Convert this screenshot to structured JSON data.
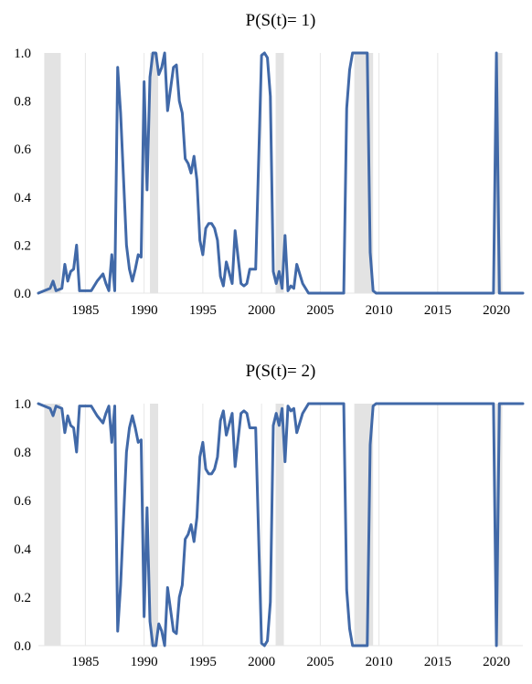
{
  "chart_data": [
    {
      "type": "line",
      "title": "P(S(t)= 1)",
      "xlabel": "",
      "ylabel": "",
      "xlim": [
        1981.0,
        2022.25
      ],
      "ylim": [
        0.0,
        1.0
      ],
      "x_ticks": [
        1985,
        1990,
        1995,
        2000,
        2005,
        2010,
        2015,
        2020
      ],
      "y_ticks": [
        0.0,
        0.2,
        0.4,
        0.6,
        0.8,
        1.0
      ],
      "y_tick_labels": [
        "0.0",
        "0.2",
        "0.4",
        "0.6",
        "0.8",
        "1.0"
      ],
      "grid": "vertical",
      "line_color": "#4169a8",
      "shading_color": "#e3e3e3",
      "shaded_periods": [
        [
          1981.5,
          1982.9
        ],
        [
          1990.5,
          1991.2
        ],
        [
          2001.2,
          2001.9
        ],
        [
          2007.9,
          2009.5
        ],
        [
          2020.0,
          2020.5
        ]
      ],
      "series": [
        {
          "x": [
            1981.0,
            1981.5,
            1982.0,
            1982.25,
            1982.5,
            1983.0,
            1983.25,
            1983.5,
            1983.75,
            1984.0,
            1984.25,
            1984.5,
            1984.75,
            1985.5,
            1986.0,
            1986.5,
            1986.75,
            1987.0,
            1987.25,
            1987.5,
            1987.75,
            1988.0,
            1988.5,
            1988.75,
            1989.0,
            1989.25,
            1989.5,
            1989.75,
            1990.0,
            1990.25,
            1990.5,
            1990.75,
            1991.0,
            1991.25,
            1991.5,
            1991.75,
            1992.0,
            1992.5,
            1992.75,
            1993.0,
            1993.25,
            1993.5,
            1993.75,
            1994.0,
            1994.25,
            1994.5,
            1994.75,
            1995.0,
            1995.25,
            1995.5,
            1995.75,
            1996.0,
            1996.25,
            1996.5,
            1996.75,
            1997.0,
            1997.5,
            1997.75,
            1998.0,
            1998.25,
            1998.5,
            1998.75,
            1999.0,
            1999.5,
            2000.0,
            2000.25,
            2000.5,
            2000.75,
            2001.0,
            2001.25,
            2001.5,
            2001.75,
            2002.0,
            2002.25,
            2002.5,
            2002.75,
            2003.0,
            2003.5,
            2004.0,
            2007.0,
            2007.25,
            2007.5,
            2007.75,
            2008.0,
            2008.5,
            2009.0,
            2009.25,
            2009.5,
            2009.75,
            2010.0,
            2011.0,
            2013.0,
            2016.0,
            2016.5,
            2017.0,
            2018.0,
            2019.0,
            2019.5,
            2019.75,
            2020.0,
            2020.25,
            2020.5,
            2020.75,
            2021.0,
            2022.25
          ],
          "y": [
            0.0,
            0.01,
            0.02,
            0.05,
            0.01,
            0.02,
            0.12,
            0.05,
            0.09,
            0.1,
            0.2,
            0.01,
            0.01,
            0.01,
            0.05,
            0.08,
            0.04,
            0.01,
            0.16,
            0.01,
            0.94,
            0.75,
            0.2,
            0.1,
            0.05,
            0.1,
            0.16,
            0.15,
            0.88,
            0.43,
            0.9,
            1.0,
            1.0,
            0.91,
            0.94,
            1.0,
            0.76,
            0.94,
            0.95,
            0.8,
            0.75,
            0.56,
            0.54,
            0.5,
            0.57,
            0.47,
            0.22,
            0.16,
            0.27,
            0.29,
            0.29,
            0.27,
            0.22,
            0.07,
            0.03,
            0.13,
            0.04,
            0.26,
            0.15,
            0.04,
            0.03,
            0.04,
            0.1,
            0.1,
            0.99,
            1.0,
            0.98,
            0.82,
            0.09,
            0.04,
            0.09,
            0.02,
            0.24,
            0.01,
            0.03,
            0.02,
            0.12,
            0.04,
            0.0,
            0.0,
            0.77,
            0.93,
            1.0,
            1.0,
            1.0,
            1.0,
            0.17,
            0.01,
            0.0,
            0.0,
            0.0,
            0.0,
            0.0,
            0.0,
            0.0,
            0.0,
            0.0,
            0.0,
            0.0,
            1.0,
            0.0,
            0.0,
            0.0,
            0.0,
            0.0
          ]
        }
      ]
    },
    {
      "type": "line",
      "title": "P(S(t)= 2)",
      "xlabel": "",
      "ylabel": "",
      "xlim": [
        1981.0,
        2022.25
      ],
      "ylim": [
        0.0,
        1.0
      ],
      "x_ticks": [
        1985,
        1990,
        1995,
        2000,
        2005,
        2010,
        2015,
        2020
      ],
      "y_ticks": [
        0.0,
        0.2,
        0.4,
        0.6,
        0.8,
        1.0
      ],
      "y_tick_labels": [
        "0.0",
        "0.2",
        "0.4",
        "0.6",
        "0.8",
        "1.0"
      ],
      "grid": "vertical",
      "line_color": "#4169a8",
      "shading_color": "#e3e3e3",
      "shaded_periods": [
        [
          1981.5,
          1982.9
        ],
        [
          1990.5,
          1991.2
        ],
        [
          2001.2,
          2001.9
        ],
        [
          2007.9,
          2009.5
        ],
        [
          2020.0,
          2020.5
        ]
      ],
      "series": [
        {
          "x": [
            1981.0,
            1981.5,
            1982.0,
            1982.25,
            1982.5,
            1983.0,
            1983.25,
            1983.5,
            1983.75,
            1984.0,
            1984.25,
            1984.5,
            1984.75,
            1985.5,
            1986.0,
            1986.5,
            1986.75,
            1987.0,
            1987.25,
            1987.5,
            1987.75,
            1988.0,
            1988.5,
            1988.75,
            1989.0,
            1989.25,
            1989.5,
            1989.75,
            1990.0,
            1990.25,
            1990.5,
            1990.75,
            1991.0,
            1991.25,
            1991.5,
            1991.75,
            1992.0,
            1992.5,
            1992.75,
            1993.0,
            1993.25,
            1993.5,
            1993.75,
            1994.0,
            1994.25,
            1994.5,
            1994.75,
            1995.0,
            1995.25,
            1995.5,
            1995.75,
            1996.0,
            1996.25,
            1996.5,
            1996.75,
            1997.0,
            1997.5,
            1997.75,
            1998.0,
            1998.25,
            1998.5,
            1998.75,
            1999.0,
            1999.5,
            2000.0,
            2000.25,
            2000.5,
            2000.75,
            2001.0,
            2001.25,
            2001.5,
            2001.75,
            2002.0,
            2002.25,
            2002.5,
            2002.75,
            2003.0,
            2003.5,
            2004.0,
            2007.0,
            2007.25,
            2007.5,
            2007.75,
            2008.0,
            2008.5,
            2009.0,
            2009.25,
            2009.5,
            2009.75,
            2010.0,
            2011.0,
            2013.0,
            2016.0,
            2016.5,
            2017.0,
            2018.0,
            2019.0,
            2019.5,
            2019.75,
            2020.0,
            2020.25,
            2020.5,
            2020.75,
            2021.0,
            2022.25
          ],
          "y": [
            1.0,
            0.99,
            0.98,
            0.95,
            0.99,
            0.98,
            0.88,
            0.95,
            0.91,
            0.9,
            0.8,
            0.99,
            0.99,
            0.99,
            0.95,
            0.92,
            0.96,
            0.99,
            0.84,
            0.99,
            0.06,
            0.25,
            0.8,
            0.9,
            0.95,
            0.9,
            0.84,
            0.85,
            0.12,
            0.57,
            0.1,
            0.0,
            0.0,
            0.09,
            0.06,
            0.0,
            0.24,
            0.06,
            0.05,
            0.2,
            0.25,
            0.44,
            0.46,
            0.5,
            0.43,
            0.53,
            0.78,
            0.84,
            0.73,
            0.71,
            0.71,
            0.73,
            0.78,
            0.93,
            0.97,
            0.87,
            0.96,
            0.74,
            0.85,
            0.96,
            0.97,
            0.96,
            0.9,
            0.9,
            0.01,
            0.0,
            0.02,
            0.18,
            0.91,
            0.96,
            0.91,
            0.98,
            0.76,
            0.99,
            0.97,
            0.98,
            0.88,
            0.96,
            1.0,
            1.0,
            0.23,
            0.07,
            0.0,
            0.0,
            0.0,
            0.0,
            0.83,
            0.99,
            1.0,
            1.0,
            1.0,
            1.0,
            1.0,
            1.0,
            1.0,
            1.0,
            1.0,
            1.0,
            1.0,
            0.0,
            1.0,
            1.0,
            1.0,
            1.0,
            1.0
          ]
        }
      ]
    }
  ]
}
